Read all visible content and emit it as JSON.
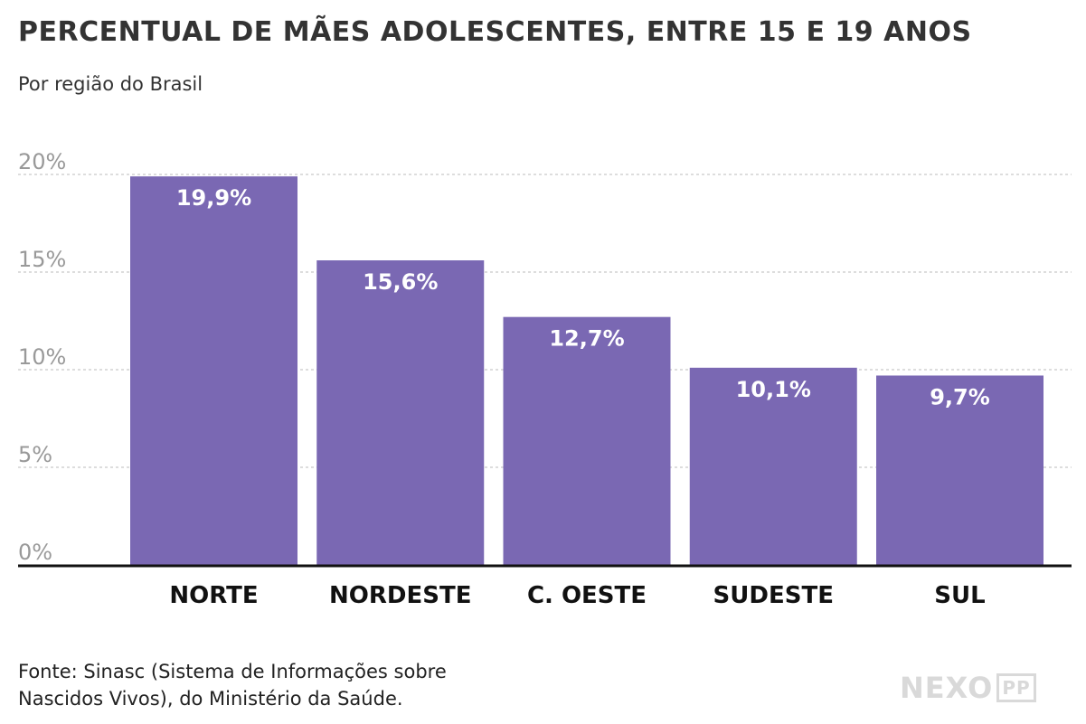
{
  "title": "PERCENTUAL DE MÃES ADOLESCENTES, ENTRE 15 E 19 ANOS",
  "subtitle": "Por região do Brasil",
  "source_line1": "Fonte: Sinasc (Sistema de Informações sobre",
  "source_line2": "Nascidos Vivos), do Ministério da Saúde.",
  "logo": {
    "main": "NEXO",
    "badge": "PP"
  },
  "chart_data": {
    "type": "bar",
    "categories": [
      "NORTE",
      "NORDESTE",
      "C. OESTE",
      "SUDESTE",
      "SUL"
    ],
    "values": [
      19.9,
      15.6,
      12.7,
      10.1,
      9.7
    ],
    "value_labels": [
      "19,9%",
      "15,6%",
      "12,7%",
      "10,1%",
      "9,7%"
    ],
    "yticks": [
      0,
      5,
      10,
      15,
      20
    ],
    "ytick_labels": [
      "0%",
      "5%",
      "10%",
      "15%",
      "20%"
    ],
    "ylim": [
      0,
      20
    ],
    "grid": true,
    "bar_color": "#7a68b3",
    "grid_color": "#bbbbbb",
    "axis_color": "#111111",
    "tick_label_color": "#999999"
  }
}
